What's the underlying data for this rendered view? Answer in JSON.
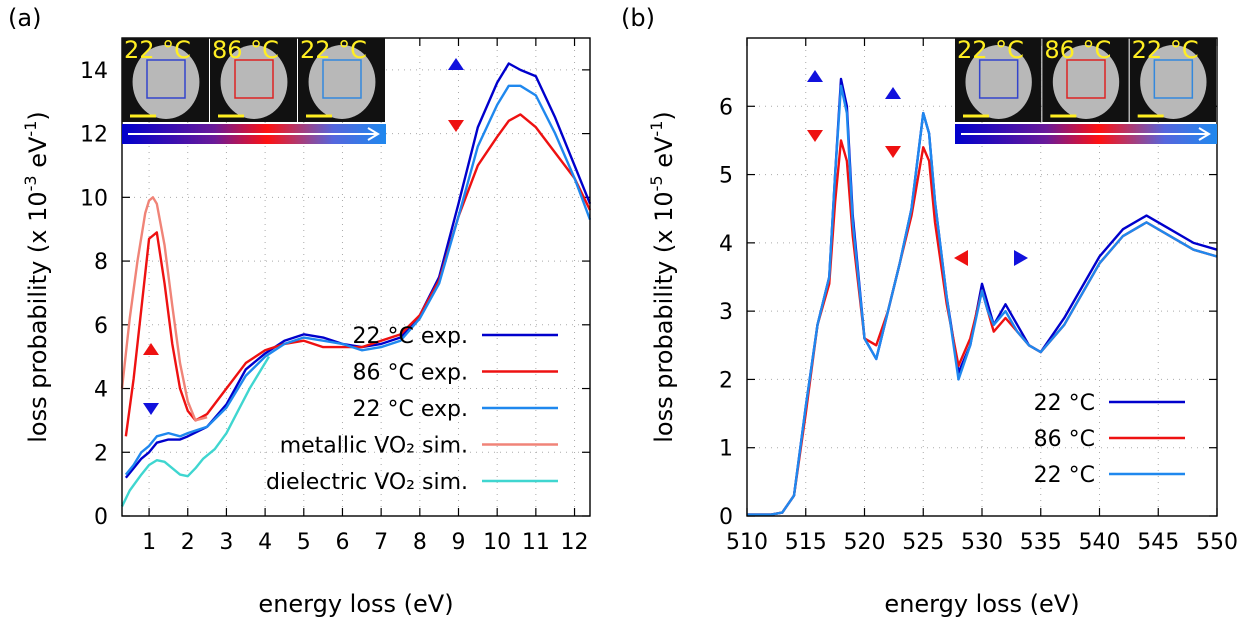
{
  "chart_data": [
    {
      "panel_label": "(a)",
      "type": "line",
      "xlabel": "energy loss (eV)",
      "ylabel_main": "loss probability (x 10",
      "ylabel_exp": "-3",
      "ylabel_unit": " eV",
      "ylabel_unit_exp": "-1",
      "ylabel_close": ")",
      "xlim": [
        0.3,
        12.4
      ],
      "ylim": [
        0,
        15
      ],
      "xticks": [
        1,
        2,
        3,
        4,
        5,
        6,
        7,
        8,
        9,
        10,
        11,
        12
      ],
      "yticks": [
        0,
        2,
        4,
        6,
        8,
        10,
        12,
        14
      ],
      "grid": true,
      "legend_position": "lower-right",
      "inset": {
        "temperatures": [
          "22 °C",
          "86 °C",
          "22 °C"
        ],
        "box_colors": [
          "#3344cc",
          "#dd2222",
          "#3388dd"
        ]
      },
      "series": [
        {
          "name": "22 °C exp.",
          "color": "#0000cc",
          "x": [
            0.4,
            0.6,
            0.8,
            1.0,
            1.2,
            1.5,
            1.8,
            2.0,
            2.5,
            3.0,
            3.5,
            4.0,
            4.5,
            5.0,
            5.5,
            6.0,
            6.5,
            7.0,
            7.5,
            8.0,
            8.5,
            9.0,
            9.5,
            10.0,
            10.3,
            10.6,
            11.0,
            11.5,
            12.0,
            12.4
          ],
          "y": [
            1.2,
            1.5,
            1.8,
            2.0,
            2.3,
            2.4,
            2.4,
            2.5,
            2.8,
            3.5,
            4.6,
            5.1,
            5.5,
            5.7,
            5.6,
            5.4,
            5.3,
            5.4,
            5.6,
            6.3,
            7.5,
            9.8,
            12.2,
            13.6,
            14.2,
            14.0,
            13.8,
            12.5,
            11.0,
            9.8
          ]
        },
        {
          "name": "86 °C exp.",
          "color": "#ee1111",
          "x": [
            0.4,
            0.6,
            0.8,
            1.0,
            1.2,
            1.4,
            1.6,
            1.8,
            2.0,
            2.2,
            2.5,
            3.0,
            3.5,
            4.0,
            4.5,
            5.0,
            5.5,
            6.0,
            6.5,
            7.0,
            7.5,
            8.0,
            8.5,
            9.0,
            9.5,
            10.0,
            10.3,
            10.6,
            11.0,
            11.5,
            12.0,
            12.4
          ],
          "y": [
            2.5,
            4.3,
            6.5,
            8.7,
            8.9,
            7.3,
            5.4,
            4.0,
            3.3,
            3.0,
            3.2,
            4.0,
            4.8,
            5.2,
            5.4,
            5.5,
            5.3,
            5.3,
            5.3,
            5.5,
            5.7,
            6.3,
            7.4,
            9.4,
            11.0,
            11.9,
            12.4,
            12.6,
            12.2,
            11.4,
            10.6,
            9.6
          ]
        },
        {
          "name": "22 °C exp.",
          "color": "#1f88ee",
          "x": [
            0.4,
            0.6,
            0.8,
            1.0,
            1.2,
            1.5,
            1.8,
            2.0,
            2.5,
            3.0,
            3.5,
            4.0,
            4.5,
            5.0,
            5.5,
            6.0,
            6.5,
            7.0,
            7.5,
            8.0,
            8.5,
            9.0,
            9.5,
            10.0,
            10.3,
            10.6,
            11.0,
            11.5,
            12.0,
            12.4
          ],
          "y": [
            1.3,
            1.6,
            2.0,
            2.2,
            2.5,
            2.6,
            2.5,
            2.6,
            2.8,
            3.4,
            4.4,
            5.0,
            5.4,
            5.6,
            5.5,
            5.4,
            5.2,
            5.3,
            5.5,
            6.2,
            7.3,
            9.4,
            11.6,
            12.9,
            13.5,
            13.5,
            13.2,
            12.0,
            10.6,
            9.3
          ]
        },
        {
          "name": "metallic VO₂ sim.",
          "color": "#f08478",
          "x": [
            0.3,
            0.5,
            0.7,
            0.9,
            1.0,
            1.1,
            1.2,
            1.4,
            1.6,
            1.8,
            2.0,
            2.2,
            2.5
          ],
          "y": [
            4.0,
            6.2,
            8.0,
            9.5,
            9.9,
            10.0,
            9.8,
            8.5,
            6.6,
            4.8,
            3.6,
            3.0,
            3.1
          ]
        },
        {
          "name": "dielectric VO₂ sim.",
          "color": "#3fd6d0",
          "x": [
            0.3,
            0.5,
            0.8,
            1.0,
            1.2,
            1.4,
            1.6,
            1.8,
            2.0,
            2.2,
            2.4,
            2.7,
            3.0,
            3.3,
            3.6,
            3.9,
            4.1
          ],
          "y": [
            0.3,
            0.8,
            1.3,
            1.6,
            1.75,
            1.7,
            1.5,
            1.3,
            1.25,
            1.5,
            1.8,
            2.1,
            2.6,
            3.3,
            4.0,
            4.6,
            5.0
          ]
        }
      ]
    },
    {
      "panel_label": "(b)",
      "type": "line",
      "xlabel": "energy loss (eV)",
      "ylabel_main": "loss probability (x 10",
      "ylabel_exp": "-5",
      "ylabel_unit": " eV",
      "ylabel_unit_exp": "-1",
      "ylabel_close": ")",
      "xlim": [
        510,
        550
      ],
      "ylim": [
        0,
        7
      ],
      "xticks": [
        510,
        515,
        520,
        525,
        530,
        535,
        540,
        545,
        550
      ],
      "yticks": [
        0,
        1,
        2,
        3,
        4,
        5,
        6
      ],
      "grid": true,
      "legend_position": "lower-right",
      "inset": {
        "temperatures": [
          "22 °C",
          "86 °C",
          "22 °C"
        ],
        "box_colors": [
          "#3344cc",
          "#dd2222",
          "#3388dd"
        ]
      },
      "series": [
        {
          "name": "22 °C",
          "color": "#0000cc",
          "x": [
            510,
            512,
            513,
            514,
            515,
            516,
            517,
            517.5,
            518,
            518.5,
            519,
            520,
            521,
            522,
            523,
            524,
            525,
            525.5,
            526,
            527,
            528,
            529,
            530,
            530.5,
            531,
            532,
            533,
            534,
            535,
            537,
            540,
            542,
            544,
            546,
            548,
            550
          ],
          "y": [
            0.02,
            0.02,
            0.05,
            0.3,
            1.6,
            2.8,
            3.5,
            5.0,
            6.4,
            6.0,
            4.4,
            2.6,
            2.3,
            3.0,
            3.7,
            4.5,
            5.9,
            5.6,
            4.6,
            3.2,
            2.1,
            2.5,
            3.4,
            3.1,
            2.8,
            3.1,
            2.8,
            2.5,
            2.4,
            2.9,
            3.8,
            4.2,
            4.4,
            4.2,
            4.0,
            3.9
          ]
        },
        {
          "name": "86 °C",
          "color": "#ee1111",
          "x": [
            510,
            512,
            513,
            514,
            515,
            516,
            517,
            517.5,
            518,
            518.5,
            519,
            520,
            521,
            522,
            523,
            524,
            525,
            525.5,
            526,
            527,
            528,
            529,
            530,
            530.5,
            531,
            532,
            533,
            534,
            535,
            537,
            540,
            542,
            544,
            546,
            548,
            550
          ],
          "y": [
            0.02,
            0.02,
            0.05,
            0.3,
            1.5,
            2.8,
            3.4,
            4.6,
            5.5,
            5.2,
            4.1,
            2.6,
            2.5,
            3.0,
            3.7,
            4.4,
            5.4,
            5.2,
            4.3,
            3.1,
            2.2,
            2.6,
            3.3,
            3.0,
            2.7,
            2.9,
            2.7,
            2.5,
            2.4,
            2.8,
            3.7,
            4.1,
            4.3,
            4.1,
            3.9,
            3.8
          ]
        },
        {
          "name": "22 °C",
          "color": "#1f88ee",
          "x": [
            510,
            512,
            513,
            514,
            515,
            516,
            517,
            517.5,
            518,
            518.5,
            519,
            520,
            521,
            522,
            523,
            524,
            525,
            525.5,
            526,
            527,
            528,
            529,
            530,
            530.5,
            531,
            532,
            533,
            534,
            535,
            537,
            540,
            542,
            544,
            546,
            548,
            550
          ],
          "y": [
            0.02,
            0.02,
            0.05,
            0.3,
            1.6,
            2.8,
            3.5,
            5.0,
            6.3,
            5.9,
            4.3,
            2.6,
            2.3,
            3.0,
            3.7,
            4.5,
            5.9,
            5.6,
            4.6,
            3.2,
            2.0,
            2.5,
            3.3,
            3.0,
            2.8,
            3.0,
            2.7,
            2.5,
            2.4,
            2.8,
            3.7,
            4.1,
            4.3,
            4.1,
            3.9,
            3.8
          ]
        }
      ]
    }
  ]
}
